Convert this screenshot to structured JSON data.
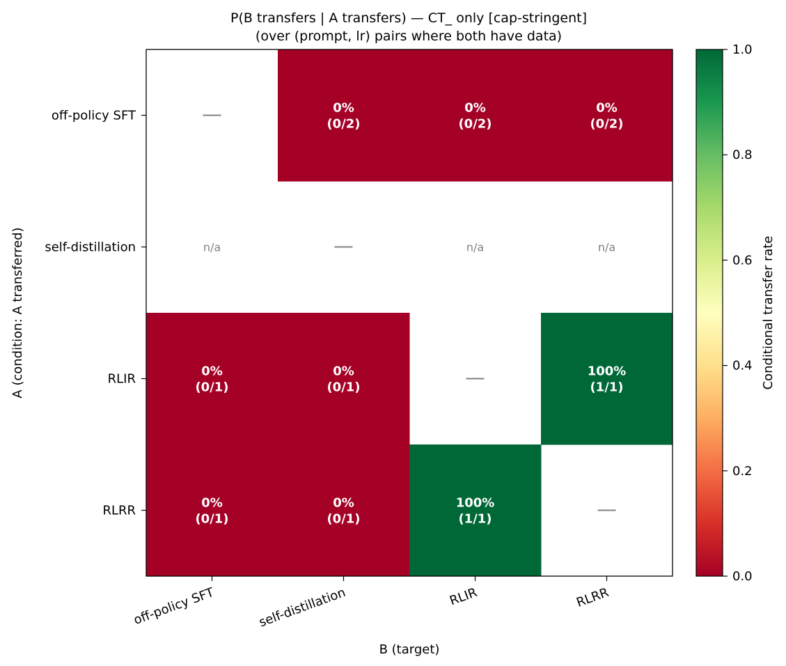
{
  "chart_data": {
    "type": "heatmap",
    "title": "P(B transfers | A transfers) — CT_ only [cap-stringent]",
    "subtitle": "(over (prompt, lr) pairs where both have data)",
    "xlabel": "B (target)",
    "ylabel": "A (condition: A transferred)",
    "x_categories": [
      "off-policy SFT",
      "self-distillation",
      "RLIR",
      "RLRR"
    ],
    "y_categories": [
      "off-policy SFT",
      "self-distillation",
      "RLIR",
      "RLRR"
    ],
    "values": [
      [
        null,
        0.0,
        0.0,
        0.0
      ],
      [
        null,
        null,
        null,
        null
      ],
      [
        0.0,
        0.0,
        null,
        1.0
      ],
      [
        0.0,
        0.0,
        1.0,
        null
      ]
    ],
    "cell_labels": [
      [
        "—",
        "0%\n(0/2)",
        "0%\n(0/2)",
        "0%\n(0/2)"
      ],
      [
        "n/a",
        "—",
        "n/a",
        "n/a"
      ],
      [
        "0%\n(0/1)",
        "0%\n(0/1)",
        "—",
        "100%\n(1/1)"
      ],
      [
        "0%\n(0/1)",
        "0%\n(0/1)",
        "100%\n(1/1)",
        "—"
      ]
    ],
    "colorbar": {
      "label": "Conditional transfer rate",
      "range": [
        0.0,
        1.0
      ],
      "ticks": [
        "0.0",
        "0.2",
        "0.4",
        "0.6",
        "0.8",
        "1.0"
      ],
      "colormap": "RdYlGn",
      "low_color": "#a50026",
      "high_color": "#006837"
    }
  }
}
